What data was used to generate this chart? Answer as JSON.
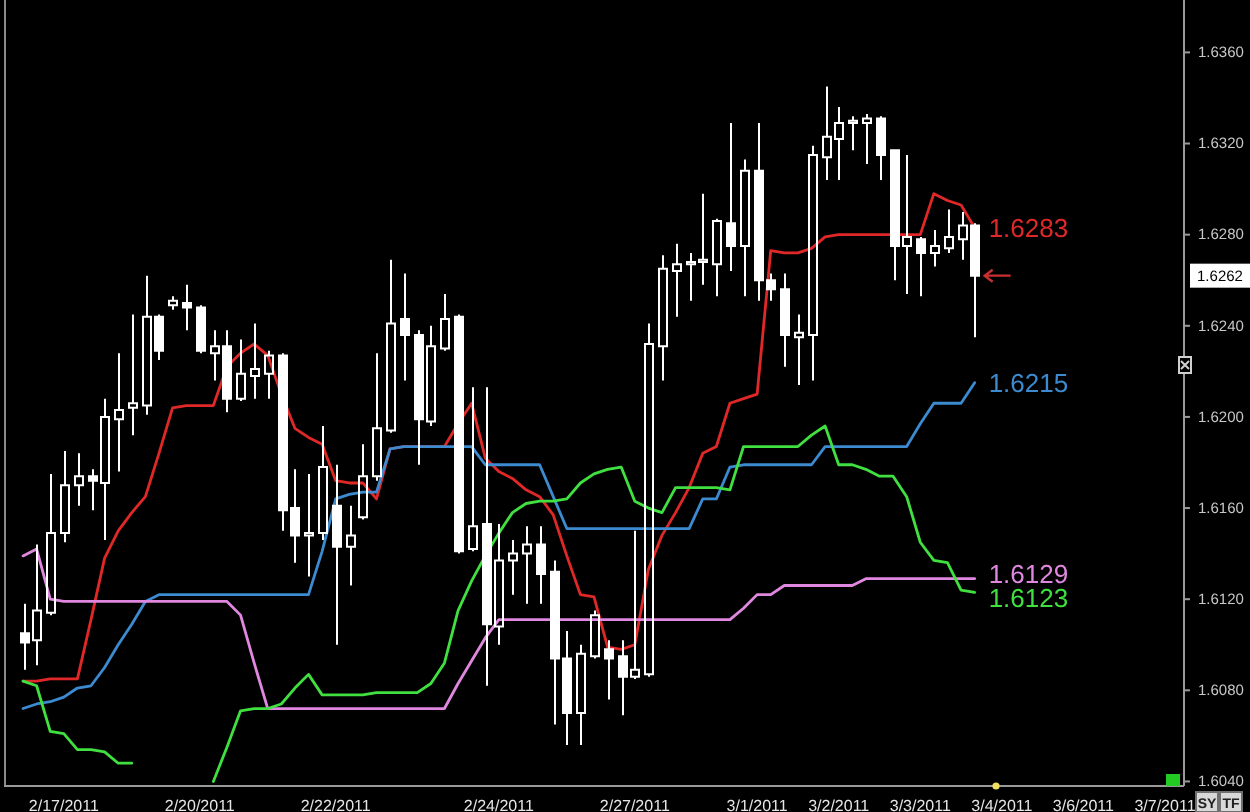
{
  "chart_data": {
    "type": "candlestick",
    "color": "#ffffff",
    "categories": [
      null,
      null,
      null,
      "2/17/2011",
      null,
      null,
      null,
      null,
      null,
      null,
      null,
      null,
      null,
      "2/20/2011",
      null,
      null,
      null,
      null,
      null,
      null,
      null,
      null,
      null,
      "2/22/2011",
      null,
      null,
      null,
      null,
      null,
      null,
      null,
      null,
      null,
      null,
      null,
      "2/24/2011",
      null,
      null,
      null,
      null,
      null,
      null,
      null,
      null,
      null,
      "2/27/2011",
      null,
      null,
      null,
      null,
      null,
      null,
      null,
      null,
      "3/1/2011",
      null,
      null,
      null,
      null,
      null,
      "3/2/2011",
      null,
      null,
      null,
      null,
      null,
      "3/3/2011",
      null,
      null,
      null,
      null,
      null,
      "3/4/2011",
      null,
      null,
      null,
      null,
      null,
      "3/6/2011",
      null,
      null,
      null,
      null,
      null,
      "3/7/2011"
    ],
    "ohlc": [
      [
        1.6105,
        1.6118,
        1.6089,
        1.6101
      ],
      [
        1.6102,
        1.6144,
        1.6091,
        1.6115
      ],
      [
        1.6114,
        1.6175,
        1.6113,
        1.6149
      ],
      [
        1.6149,
        1.6185,
        1.6145,
        1.617
      ],
      [
        1.617,
        1.6184,
        1.6161,
        1.6174
      ],
      [
        1.6174,
        1.6177,
        1.6159,
        1.6172
      ],
      [
        1.6171,
        1.6208,
        1.6146,
        1.62
      ],
      [
        1.6199,
        1.6228,
        1.6176,
        1.6203
      ],
      [
        1.6204,
        1.6245,
        1.6192,
        1.6206
      ],
      [
        1.6205,
        1.6262,
        1.6201,
        1.6244
      ],
      [
        1.6244,
        1.6245,
        1.6225,
        1.6229
      ],
      [
        1.6249,
        1.6253,
        1.6247,
        1.6251
      ],
      [
        1.625,
        1.6258,
        1.6238,
        1.6248
      ],
      [
        1.6248,
        1.6249,
        1.6228,
        1.6229
      ],
      [
        1.6228,
        1.6238,
        1.6216,
        1.6231
      ],
      [
        1.6231,
        1.6238,
        1.6202,
        1.6208
      ],
      [
        1.6208,
        1.6234,
        1.6207,
        1.6219
      ],
      [
        1.6218,
        1.6241,
        1.6208,
        1.6221
      ],
      [
        1.6219,
        1.6229,
        1.6208,
        1.6227
      ],
      [
        1.6227,
        1.6228,
        1.615,
        1.6159
      ],
      [
        1.616,
        1.6177,
        1.6136,
        1.6148
      ],
      [
        1.6148,
        1.6175,
        1.613,
        1.6149
      ],
      [
        1.6149,
        1.6196,
        1.6146,
        1.6178
      ],
      [
        1.6161,
        1.6179,
        1.61,
        1.6143
      ],
      [
        1.6143,
        1.6161,
        1.6126,
        1.6148
      ],
      [
        1.6156,
        1.6188,
        1.6155,
        1.6174
      ],
      [
        1.6174,
        1.6228,
        1.6172,
        1.6195
      ],
      [
        1.6194,
        1.6269,
        1.6193,
        1.6241
      ],
      [
        1.6243,
        1.6263,
        1.6216,
        1.6236
      ],
      [
        1.6236,
        1.6238,
        1.6179,
        1.6199
      ],
      [
        1.6198,
        1.624,
        1.6196,
        1.6231
      ],
      [
        1.623,
        1.6254,
        1.6229,
        1.6243
      ],
      [
        1.6244,
        1.6245,
        1.614,
        1.6141
      ],
      [
        1.6142,
        1.6213,
        1.6141,
        1.6152
      ],
      [
        1.6153,
        1.6213,
        1.6082,
        1.6109
      ],
      [
        1.6108,
        1.6153,
        1.61,
        1.6137
      ],
      [
        1.6137,
        1.6146,
        1.6122,
        1.614
      ],
      [
        1.614,
        1.6152,
        1.6118,
        1.6144
      ],
      [
        1.6144,
        1.6152,
        1.6118,
        1.6131
      ],
      [
        1.6132,
        1.6137,
        1.6065,
        1.6094
      ],
      [
        1.6094,
        1.6106,
        1.6056,
        1.607
      ],
      [
        1.607,
        1.61,
        1.6056,
        1.6096
      ],
      [
        1.6095,
        1.6115,
        1.6094,
        1.6113
      ],
      [
        1.6098,
        1.6102,
        1.6076,
        1.6094
      ],
      [
        1.6095,
        1.6102,
        1.6069,
        1.6086
      ],
      [
        1.6086,
        1.615,
        1.6085,
        1.6089
      ],
      [
        1.6087,
        1.6241,
        1.6086,
        1.6232
      ],
      [
        1.6231,
        1.6271,
        1.6216,
        1.6265
      ],
      [
        1.6264,
        1.6276,
        1.6244,
        1.6267
      ],
      [
        1.6267,
        1.6272,
        1.6251,
        1.6268
      ],
      [
        1.6268,
        1.6298,
        1.6258,
        1.6269
      ],
      [
        1.6267,
        1.6287,
        1.6253,
        1.6286
      ],
      [
        1.6285,
        1.6329,
        1.6264,
        1.6275
      ],
      [
        1.6275,
        1.6313,
        1.6253,
        1.6308
      ],
      [
        1.6308,
        1.6329,
        1.6251,
        1.626
      ],
      [
        1.626,
        1.6263,
        1.6251,
        1.6256
      ],
      [
        1.6256,
        1.6263,
        1.6222,
        1.6236
      ],
      [
        1.6235,
        1.6245,
        1.6214,
        1.6237
      ],
      [
        1.6236,
        1.6319,
        1.6216,
        1.6315
      ],
      [
        1.6314,
        1.6345,
        1.6304,
        1.6323
      ],
      [
        1.6322,
        1.6336,
        1.6304,
        1.6329
      ],
      [
        1.6329,
        1.6332,
        1.6317,
        1.633
      ],
      [
        1.6329,
        1.6333,
        1.6311,
        1.6331
      ],
      [
        1.6331,
        1.6332,
        1.6304,
        1.6315
      ],
      [
        1.6317,
        1.6317,
        1.626,
        1.6275
      ],
      [
        1.6275,
        1.6315,
        1.6254,
        1.6279
      ],
      [
        1.6278,
        1.6279,
        1.6253,
        1.6272
      ],
      [
        1.6272,
        1.6282,
        1.6266,
        1.6275
      ],
      [
        1.6274,
        1.6291,
        1.6272,
        1.6279
      ],
      [
        1.6278,
        1.629,
        1.6269,
        1.6284
      ],
      [
        1.6284,
        1.6285,
        1.6235,
        1.6262
      ],
      null,
      null,
      null,
      null,
      null,
      null,
      null,
      null,
      null,
      null,
      null,
      null,
      null,
      null
    ],
    "series": [
      {
        "type": "line",
        "color": "#e02828",
        "values": [
          1.6084,
          1.6084,
          1.6085,
          1.6085,
          1.6085,
          1.6111,
          1.6138,
          1.615,
          1.6158,
          1.6165,
          1.6184,
          1.6204,
          1.6205,
          1.6205,
          1.6205,
          1.6222,
          1.6228,
          1.6232,
          1.6227,
          1.621,
          1.6195,
          1.6191,
          1.6188,
          1.6172,
          1.6171,
          1.6171,
          1.6164,
          1.6186,
          1.6187,
          1.6187,
          1.6187,
          1.6187,
          1.6197,
          1.6206,
          1.6182,
          1.6176,
          1.6173,
          1.6168,
          1.6165,
          1.6157,
          1.6139,
          1.6122,
          1.6121,
          1.6099,
          1.6098,
          1.61,
          1.6133,
          1.6148,
          1.6158,
          1.6169,
          1.6184,
          1.6187,
          1.6206,
          1.6208,
          1.621,
          1.6273,
          1.6272,
          1.6272,
          1.6274,
          1.6279,
          1.628,
          1.628,
          1.628,
          1.628,
          1.628,
          1.628,
          1.628,
          1.6298,
          1.6295,
          1.6293,
          1.6283,
          null,
          null,
          null,
          null,
          null,
          null,
          null,
          null,
          null,
          null,
          null,
          null,
          null,
          null
        ],
        "value_labels": [
          null,
          null,
          null,
          null,
          null,
          null,
          null,
          null,
          null,
          null,
          null,
          null,
          null,
          null,
          null,
          null,
          null,
          null,
          null,
          null,
          null,
          null,
          null,
          null,
          null,
          null,
          null,
          null,
          null,
          null,
          null,
          null,
          null,
          null,
          null,
          null,
          null,
          null,
          null,
          null,
          null,
          null,
          null,
          null,
          null,
          null,
          null,
          null,
          null,
          null,
          null,
          null,
          null,
          null,
          null,
          null,
          null,
          null,
          null,
          null,
          null,
          null,
          null,
          null,
          null,
          null,
          null,
          null,
          null,
          null,
          "1.6283",
          null,
          null,
          null,
          null,
          null,
          null,
          null,
          null,
          null,
          null,
          null,
          null,
          null,
          null
        ]
      },
      {
        "type": "line",
        "color": "#3c8ad0",
        "values": [
          1.6072,
          1.6074,
          1.6075,
          1.6077,
          1.6081,
          1.6082,
          1.609,
          1.61,
          1.6109,
          1.6119,
          1.6122,
          1.6122,
          1.6122,
          1.6122,
          1.6122,
          1.6122,
          1.6122,
          1.6122,
          1.6122,
          1.6122,
          1.6122,
          1.6122,
          1.6141,
          1.6164,
          1.6166,
          1.6167,
          1.6167,
          1.6186,
          1.6187,
          1.6187,
          1.6187,
          1.6187,
          1.6187,
          1.6187,
          1.6179,
          1.6179,
          1.6179,
          1.6179,
          1.6179,
          1.6165,
          1.6151,
          1.6151,
          1.6151,
          1.6151,
          1.6151,
          1.6151,
          1.6151,
          1.6151,
          1.6151,
          1.6151,
          1.6164,
          1.6164,
          1.6178,
          1.6179,
          1.6179,
          1.6179,
          1.6179,
          1.6179,
          1.6179,
          1.6187,
          1.6187,
          1.6187,
          1.6187,
          1.6187,
          1.6187,
          1.6187,
          1.6197,
          1.6206,
          1.6206,
          1.6206,
          1.6215,
          null,
          null,
          null,
          null,
          null,
          null,
          null,
          null,
          null,
          null,
          null,
          null,
          null,
          null
        ],
        "value_labels": [
          null,
          null,
          null,
          null,
          null,
          null,
          null,
          null,
          null,
          null,
          null,
          null,
          null,
          null,
          null,
          null,
          null,
          null,
          null,
          null,
          null,
          null,
          null,
          null,
          null,
          null,
          null,
          null,
          null,
          null,
          null,
          null,
          null,
          null,
          null,
          null,
          null,
          null,
          null,
          null,
          null,
          null,
          null,
          null,
          null,
          null,
          null,
          null,
          null,
          null,
          null,
          null,
          null,
          null,
          null,
          null,
          null,
          null,
          null,
          null,
          null,
          null,
          null,
          null,
          null,
          null,
          null,
          null,
          null,
          null,
          "1.6215",
          null,
          null,
          null,
          null,
          null,
          null,
          null,
          null,
          null,
          null,
          null,
          null,
          null,
          null
        ]
      },
      {
        "type": "line",
        "color": "#e088e0",
        "values": [
          1.6139,
          1.6142,
          1.612,
          1.6119,
          1.6119,
          1.6119,
          1.6119,
          1.6119,
          1.6119,
          1.6119,
          1.6119,
          1.6119,
          1.6119,
          1.6119,
          1.6119,
          1.6119,
          1.6113,
          1.6092,
          1.6072,
          1.6072,
          1.6072,
          1.6072,
          1.6072,
          1.6072,
          1.6072,
          1.6072,
          1.6072,
          1.6072,
          1.6072,
          1.6072,
          1.6072,
          1.6072,
          1.6083,
          1.6093,
          1.6103,
          1.6111,
          1.6111,
          1.6111,
          1.6111,
          1.6111,
          1.6111,
          1.6111,
          1.6111,
          1.6111,
          1.6111,
          1.6111,
          1.6111,
          1.6111,
          1.6111,
          1.6111,
          1.6111,
          1.6111,
          1.6111,
          1.6116,
          1.6122,
          1.6122,
          1.6126,
          1.6126,
          1.6126,
          1.6126,
          1.6126,
          1.6126,
          1.6129,
          1.6129,
          1.6129,
          1.6129,
          1.6129,
          1.6129,
          1.6129,
          1.6129,
          1.6129,
          null,
          null,
          null,
          null,
          null,
          null,
          null,
          null,
          null,
          null,
          null,
          null,
          null,
          null
        ],
        "value_labels": [
          null,
          null,
          null,
          null,
          null,
          null,
          null,
          null,
          null,
          null,
          null,
          null,
          null,
          null,
          null,
          null,
          null,
          null,
          null,
          null,
          null,
          null,
          null,
          null,
          null,
          null,
          null,
          null,
          null,
          null,
          null,
          null,
          null,
          null,
          null,
          null,
          null,
          null,
          null,
          null,
          null,
          null,
          null,
          null,
          null,
          null,
          null,
          null,
          null,
          null,
          null,
          null,
          null,
          null,
          null,
          null,
          null,
          null,
          null,
          null,
          null,
          null,
          null,
          null,
          null,
          null,
          null,
          null,
          null,
          null,
          "1.6129",
          null,
          null,
          null,
          null,
          null,
          null,
          null,
          null,
          null,
          null,
          null,
          null,
          null,
          null
        ]
      },
      {
        "type": "line",
        "color": "#40e040",
        "values": [
          1.6084,
          1.6082,
          1.6062,
          1.6061,
          1.6054,
          1.6054,
          1.6053,
          1.6048,
          1.6048,
          null,
          null,
          null,
          null,
          null,
          1.604,
          1.6055,
          1.6071,
          1.6072,
          1.6072,
          1.6074,
          1.6081,
          1.6087,
          1.6078,
          1.6078,
          1.6078,
          1.6078,
          1.6079,
          1.6079,
          1.6079,
          1.6079,
          1.6083,
          1.6092,
          1.6115,
          1.6128,
          1.6139,
          1.6149,
          1.6158,
          1.6162,
          1.6163,
          1.6163,
          1.6164,
          1.6171,
          1.6175,
          1.6177,
          1.6178,
          1.6163,
          1.616,
          1.6158,
          1.6169,
          1.6169,
          1.6169,
          1.6169,
          1.6168,
          1.6187,
          1.6187,
          1.6187,
          1.6187,
          1.6187,
          1.6192,
          1.6196,
          1.6179,
          1.6179,
          1.6177,
          1.6174,
          1.6174,
          1.6165,
          1.6145,
          1.6137,
          1.6136,
          1.6124,
          1.6123,
          null,
          null,
          null,
          null,
          null,
          null,
          null,
          null,
          null,
          null,
          null,
          null,
          null,
          null
        ],
        "value_labels": [
          null,
          null,
          null,
          null,
          null,
          null,
          null,
          null,
          null,
          null,
          null,
          null,
          null,
          null,
          null,
          null,
          null,
          null,
          null,
          null,
          null,
          null,
          null,
          null,
          null,
          null,
          null,
          null,
          null,
          null,
          null,
          null,
          null,
          null,
          null,
          null,
          null,
          null,
          null,
          null,
          null,
          null,
          null,
          null,
          null,
          null,
          null,
          null,
          null,
          null,
          null,
          null,
          null,
          null,
          null,
          null,
          null,
          null,
          null,
          null,
          null,
          null,
          null,
          null,
          null,
          null,
          null,
          null,
          null,
          null,
          "1.6123",
          null,
          null,
          null,
          null,
          null,
          null,
          null,
          null,
          null,
          null,
          null,
          null,
          null,
          null
        ]
      }
    ],
    "ylim": [
      1.6038,
      1.6383
    ],
    "yticks": [
      {
        "value": 1.604,
        "label": "1.6040"
      },
      {
        "value": 1.608,
        "label": "1.6080"
      },
      {
        "value": 1.612,
        "label": "1.6120"
      },
      {
        "value": 1.616,
        "label": "1.6160"
      },
      {
        "value": 1.62,
        "label": "1.6200"
      },
      {
        "value": 1.624,
        "label": "1.6240"
      },
      {
        "value": 1.628,
        "label": "1.6280"
      },
      {
        "value": 1.632,
        "label": "1.6320"
      },
      {
        "value": 1.636,
        "label": "1.6360"
      }
    ],
    "annotations": [
      {
        "text": "1.6262",
        "y": 1.6262
      },
      "SY",
      "TF"
    ]
  }
}
